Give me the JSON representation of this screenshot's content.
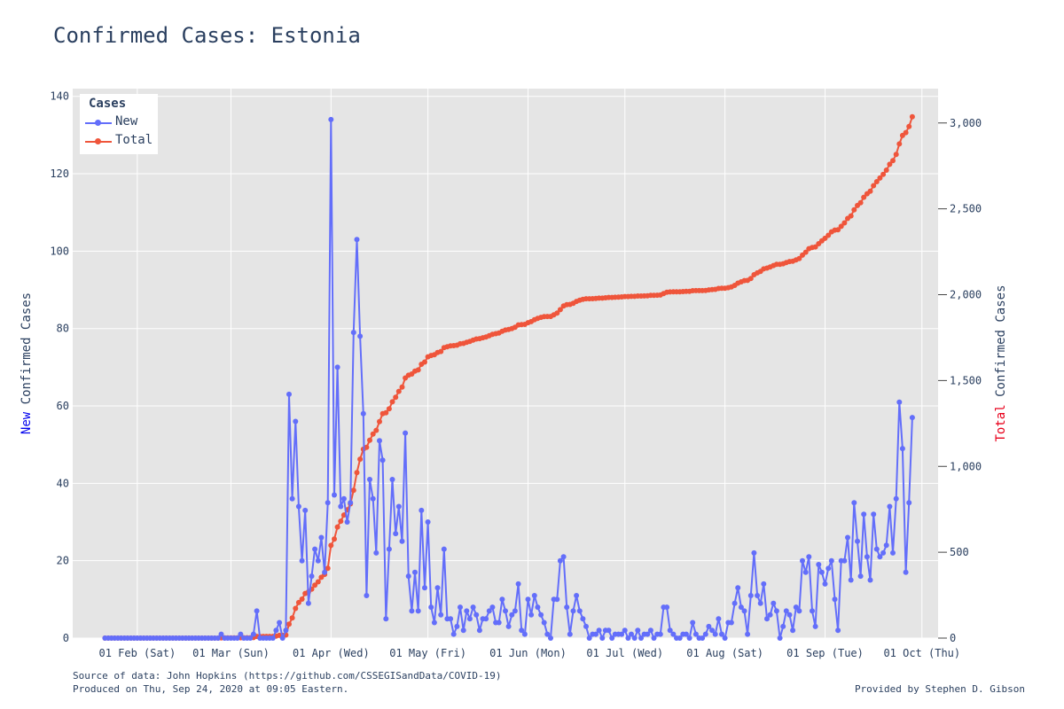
{
  "title": "Confirmed Cases: Estonia",
  "footer": {
    "source": "Source of data: John Hopkins (https://github.com/CSSEGISandData/COVID-19)",
    "produced": "Produced on Thu, Sep 24, 2020 at 09:05 Eastern.",
    "provided": "Provided by Stephen D. Gibson"
  },
  "colors": {
    "new": "#636efa",
    "total": "#ef553b",
    "plot_bg": "#e5e5e5",
    "grid": "#ffffff",
    "text": "#2a3f5f"
  },
  "chart_data": {
    "type": "line",
    "title": "Confirmed Cases: Estonia",
    "x_range": [
      "2020-01-22",
      "2020-09-23"
    ],
    "x_tick_labels": [
      "01 Feb (Sat)",
      "01 Mar (Sun)",
      "01 Apr (Wed)",
      "01 May (Fri)",
      "01 Jun (Mon)",
      "01 Jul (Wed)",
      "01 Aug (Sat)",
      "01 Sep (Tue)",
      "01 Oct (Thu)"
    ],
    "x_tick_dates": [
      "2020-02-01",
      "2020-03-01",
      "2020-04-01",
      "2020-05-01",
      "2020-06-01",
      "2020-07-01",
      "2020-08-01",
      "2020-09-01",
      "2020-10-01"
    ],
    "y_left": {
      "label_prefix": "New",
      "label_rest": " Confirmed Cases",
      "ticks": [
        0,
        20,
        40,
        60,
        80,
        100,
        120,
        140
      ],
      "range": [
        0,
        142
      ]
    },
    "y_right": {
      "label_prefix": "Total",
      "label_rest": " Confirmed Cases",
      "ticks": [
        0,
        500,
        1000,
        1500,
        2000,
        2500,
        3000
      ],
      "tick_labels": [
        "0",
        "500",
        "1,000",
        "1,500",
        "2,000",
        "2,500",
        "3,000"
      ],
      "range": [
        0,
        3200
      ]
    },
    "legend": {
      "title": "Cases",
      "position": "top-left",
      "entries": [
        "New",
        "Total"
      ]
    },
    "grid": true,
    "start_date": "2020-01-22",
    "series": [
      {
        "name": "New",
        "values": [
          0,
          0,
          0,
          0,
          0,
          0,
          0,
          0,
          0,
          0,
          0,
          0,
          0,
          0,
          0,
          0,
          0,
          0,
          0,
          0,
          0,
          0,
          0,
          0,
          0,
          0,
          0,
          0,
          0,
          0,
          0,
          0,
          0,
          0,
          0,
          0,
          1,
          0,
          0,
          0,
          0,
          0,
          1,
          0,
          0,
          0,
          1,
          7,
          0,
          0,
          0,
          0,
          0,
          2,
          4,
          0,
          2,
          63,
          36,
          56,
          34,
          20,
          33,
          9,
          16,
          23,
          20,
          26,
          17,
          35,
          134,
          37,
          70,
          34,
          36,
          30,
          35,
          79,
          103,
          78,
          58,
          11,
          41,
          36,
          22,
          51,
          46,
          5,
          23,
          41,
          27,
          34,
          25,
          53,
          16,
          7,
          17,
          7,
          33,
          13,
          30,
          8,
          4,
          13,
          6,
          23,
          5,
          5,
          1,
          3,
          8,
          2,
          7,
          5,
          8,
          6,
          2,
          5,
          5,
          7,
          8,
          4,
          4,
          10,
          7,
          3,
          6,
          7,
          14,
          2,
          1,
          10,
          6,
          11,
          8,
          6,
          4,
          1,
          0,
          10,
          10,
          20,
          21,
          8,
          1,
          7,
          11,
          7,
          5,
          3,
          0,
          1,
          1,
          2,
          0,
          2,
          2,
          0,
          1,
          1,
          1,
          2,
          0,
          1,
          0,
          2,
          0,
          1,
          1,
          2,
          0,
          1,
          1,
          8,
          8,
          2,
          1,
          0,
          0,
          1,
          1,
          0,
          4,
          1,
          0,
          0,
          1,
          3,
          2,
          1,
          5,
          1,
          0,
          4,
          4,
          9,
          13,
          8,
          7,
          1,
          11,
          22,
          11,
          9,
          14,
          5,
          6,
          9,
          7,
          0,
          3,
          7,
          6,
          2,
          8,
          7,
          20,
          17,
          21,
          7,
          3,
          19,
          17,
          14,
          18,
          20,
          10,
          2,
          20,
          20,
          26,
          15,
          35,
          25,
          16,
          32,
          21,
          15,
          32,
          23,
          21,
          22,
          24,
          34,
          22,
          36,
          61,
          49,
          17,
          35,
          57
        ]
      },
      {
        "name": "Total",
        "values": [
          0,
          0,
          0,
          0,
          0,
          0,
          0,
          0,
          0,
          0,
          0,
          0,
          0,
          0,
          0,
          0,
          0,
          0,
          0,
          0,
          0,
          0,
          0,
          0,
          0,
          0,
          0,
          0,
          0,
          0,
          0,
          0,
          0,
          0,
          0,
          0,
          1,
          1,
          1,
          1,
          1,
          1,
          2,
          2,
          2,
          2,
          3,
          10,
          10,
          10,
          10,
          10,
          10,
          12,
          16,
          16,
          18,
          81,
          117,
          173,
          207,
          227,
          260,
          269,
          285,
          308,
          328,
          354,
          371,
          406,
          540,
          577,
          647,
          681,
          717,
          747,
          782,
          861,
          964,
          1042,
          1100,
          1111,
          1152,
          1188,
          1210,
          1261,
          1307,
          1312,
          1335,
          1376,
          1403,
          1437,
          1462,
          1515,
          1531,
          1538,
          1555,
          1562,
          1595,
          1608,
          1638,
          1646,
          1650,
          1663,
          1669,
          1692,
          1697,
          1702,
          1703,
          1706,
          1714,
          1716,
          1723,
          1728,
          1736,
          1742,
          1744,
          1749,
          1754,
          1761,
          1769,
          1773,
          1777,
          1787,
          1794,
          1797,
          1803,
          1810,
          1824,
          1826,
          1827,
          1837,
          1843,
          1854,
          1862,
          1868,
          1872,
          1873,
          1873,
          1883,
          1893,
          1913,
          1934,
          1942,
          1943,
          1950,
          1961,
          1968,
          1973,
          1976,
          1976,
          1977,
          1978,
          1980,
          1980,
          1982,
          1984,
          1984,
          1985,
          1986,
          1987,
          1989,
          1989,
          1990,
          1990,
          1992,
          1992,
          1993,
          1994,
          1996,
          1996,
          1997,
          1998,
          2006,
          2014,
          2016,
          2017,
          2017,
          2017,
          2018,
          2019,
          2019,
          2023,
          2024,
          2024,
          2024,
          2025,
          2028,
          2030,
          2031,
          2036,
          2037,
          2037,
          2041,
          2045,
          2054,
          2067,
          2075,
          2082,
          2083,
          2094,
          2116,
          2127,
          2136,
          2150,
          2155,
          2161,
          2170,
          2177,
          2177,
          2180,
          2187,
          2193,
          2195,
          2203,
          2210,
          2230,
          2247,
          2268,
          2275,
          2278,
          2297,
          2314,
          2328,
          2346,
          2366,
          2376,
          2378,
          2398,
          2418,
          2444,
          2459,
          2494,
          2519,
          2535,
          2567,
          2588,
          2603,
          2635,
          2658,
          2679,
          2701,
          2725,
          2759,
          2781,
          2817,
          2878,
          2927,
          2944,
          2979,
          3036
        ]
      }
    ]
  }
}
